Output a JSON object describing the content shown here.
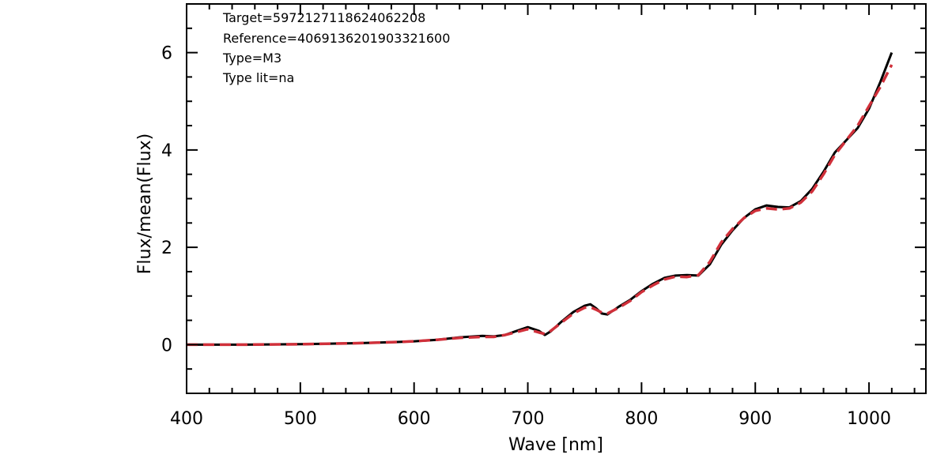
{
  "chart_data": {
    "type": "line",
    "xlabel": "Wave [nm]",
    "ylabel": "Flux/mean(Flux)",
    "xlim": [
      400,
      1050
    ],
    "ylim": [
      -1,
      7
    ],
    "x_ticks": [
      400,
      500,
      600,
      700,
      800,
      900,
      1000
    ],
    "x_tick_labels": [
      "400",
      "500",
      "600",
      "700",
      "800",
      "900",
      "1000"
    ],
    "y_ticks": [
      0,
      2,
      4,
      6
    ],
    "y_tick_labels": [
      "0",
      "2",
      "4",
      "6"
    ],
    "grid": false,
    "annotations": [
      "Target=5972127118624062208",
      "Reference=4069136201903321600",
      "Type=M3",
      "Type lit=na"
    ],
    "series": [
      {
        "color": "#000000",
        "style": "solid",
        "x": [
          400,
          450,
          500,
          550,
          580,
          600,
          620,
          640,
          660,
          670,
          680,
          690,
          700,
          710,
          715,
          720,
          730,
          740,
          750,
          755,
          760,
          765,
          770,
          780,
          790,
          800,
          810,
          820,
          830,
          840,
          850,
          860,
          870,
          880,
          890,
          900,
          910,
          920,
          930,
          940,
          950,
          960,
          970,
          980,
          990,
          1000,
          1010,
          1020
        ],
        "y": [
          0.0,
          0.0,
          0.01,
          0.03,
          0.05,
          0.07,
          0.1,
          0.15,
          0.18,
          0.17,
          0.2,
          0.28,
          0.36,
          0.28,
          0.2,
          0.27,
          0.48,
          0.67,
          0.8,
          0.83,
          0.75,
          0.64,
          0.62,
          0.78,
          0.92,
          1.1,
          1.25,
          1.37,
          1.42,
          1.43,
          1.42,
          1.65,
          2.05,
          2.35,
          2.6,
          2.78,
          2.86,
          2.83,
          2.82,
          2.95,
          3.2,
          3.55,
          3.95,
          4.2,
          4.45,
          4.85,
          5.4,
          6.0
        ]
      },
      {
        "color": "#d0303a",
        "style": "dashed",
        "x": [
          400,
          450,
          500,
          550,
          580,
          600,
          620,
          640,
          660,
          670,
          680,
          690,
          700,
          710,
          715,
          720,
          730,
          740,
          750,
          755,
          760,
          765,
          770,
          780,
          790,
          800,
          810,
          820,
          830,
          840,
          850,
          860,
          870,
          880,
          890,
          900,
          910,
          920,
          930,
          940,
          950,
          960,
          970,
          980,
          990,
          1000,
          1010,
          1020
        ],
        "y": [
          0.0,
          0.0,
          0.01,
          0.03,
          0.05,
          0.07,
          0.1,
          0.14,
          0.16,
          0.16,
          0.2,
          0.26,
          0.32,
          0.25,
          0.22,
          0.28,
          0.46,
          0.64,
          0.76,
          0.77,
          0.72,
          0.66,
          0.64,
          0.76,
          0.9,
          1.08,
          1.22,
          1.34,
          1.4,
          1.39,
          1.43,
          1.7,
          2.1,
          2.38,
          2.6,
          2.75,
          2.8,
          2.78,
          2.8,
          2.92,
          3.15,
          3.5,
          3.9,
          4.2,
          4.5,
          4.9,
          5.3,
          5.75
        ]
      }
    ]
  }
}
